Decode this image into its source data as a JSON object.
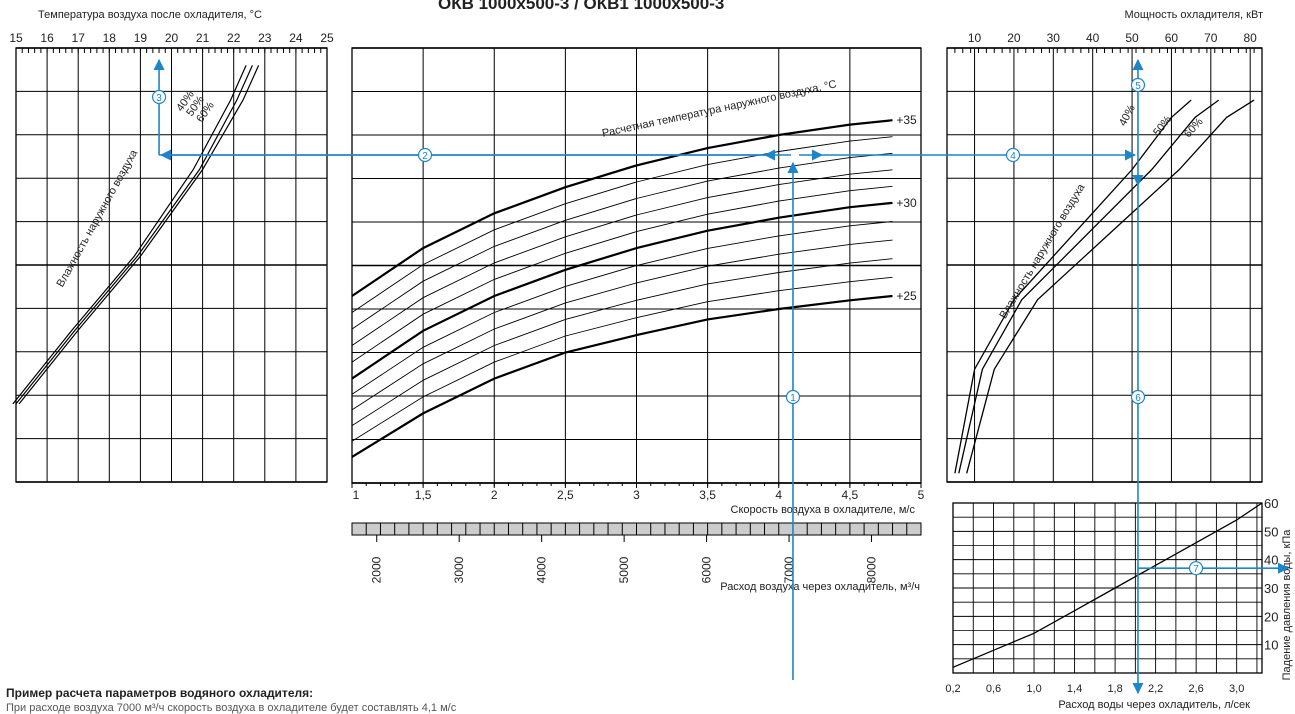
{
  "title": "ОКВ 1000x500-3 / ОКВ1 1000x500-3",
  "example_heading": "Пример расчета параметров водяного охладителя:",
  "example_text": "При расходе воздуха 7000 м³/ч скорость воздуха в охладителе будет составлять 4,1 м/с",
  "colors": {
    "blue": "#1d86c8",
    "grid": "#000000"
  },
  "chart_data": [
    {
      "type": "line",
      "panel": "outlet-temperature",
      "xlabel": "Температура воздуха после охладителя,  °С",
      "x_ticks": [
        "15",
        "16",
        "17",
        "18",
        "19",
        "20",
        "21",
        "22",
        "23",
        "24",
        "25"
      ],
      "xlim": [
        15,
        25
      ],
      "annotations": [
        "40%",
        "50%",
        "60%",
        "Влажность наружного воздуха"
      ],
      "series": [
        {
          "name": "40%",
          "x": [
            15.1,
            17.0,
            19.0,
            21.0,
            22.3,
            22.8
          ],
          "y": [
            0.9,
            1.75,
            2.6,
            3.6,
            4.4,
            4.8
          ]
        },
        {
          "name": "50%",
          "x": [
            15.0,
            16.9,
            18.9,
            20.9,
            22.1,
            22.6
          ],
          "y": [
            0.9,
            1.75,
            2.6,
            3.6,
            4.4,
            4.8
          ]
        },
        {
          "name": "60%",
          "x": [
            14.9,
            16.8,
            18.8,
            20.7,
            21.9,
            22.4
          ],
          "y": [
            0.9,
            1.75,
            2.6,
            3.6,
            4.4,
            4.8
          ]
        }
      ]
    },
    {
      "type": "line",
      "panel": "air-velocity",
      "xlabel": "Скорость воздуха в охладителе,  м/с",
      "x_ticks": [
        "1",
        "1,5",
        "2",
        "2,5",
        "3",
        "3,5",
        "4",
        "4,5",
        "5"
      ],
      "xlim": [
        1,
        5
      ],
      "x2label": "Расход воздуха через охладитель,  м³/ч",
      "x2_ticks": [
        "2000",
        "3000",
        "4000",
        "5000",
        "6000",
        "7000",
        "8000"
      ],
      "x2lim": [
        1700,
        8600
      ],
      "annotations": [
        "Расчетная  температура  наружного  воздуха,  °С"
      ],
      "series": [
        {
          "name": "+35",
          "x": [
            1.0,
            1.5,
            2.0,
            2.5,
            3.0,
            3.5,
            4.0,
            4.5,
            4.8
          ],
          "y": [
            2.15,
            2.7,
            3.1,
            3.4,
            3.65,
            3.85,
            4.0,
            4.12,
            4.17
          ]
        },
        {
          "name": "+30",
          "x": [
            1.0,
            1.5,
            2.0,
            2.5,
            3.0,
            3.5,
            4.0,
            4.5,
            4.8
          ],
          "y": [
            1.2,
            1.75,
            2.15,
            2.45,
            2.7,
            2.9,
            3.05,
            3.17,
            3.22
          ]
        },
        {
          "name": "+25",
          "x": [
            1.0,
            1.5,
            2.0,
            2.5,
            3.0,
            3.5,
            4.0,
            4.5,
            4.8
          ],
          "y": [
            0.3,
            0.8,
            1.2,
            1.5,
            1.7,
            1.88,
            2.0,
            2.1,
            2.15
          ]
        }
      ],
      "curve_labels": [
        "+35",
        "+30",
        "+25"
      ]
    },
    {
      "type": "line",
      "panel": "cooling-power",
      "xlabel": "Мощность охладителя,  кВт",
      "x_ticks": [
        "10",
        "20",
        "30",
        "40",
        "50",
        "60",
        "70",
        "80"
      ],
      "xlim": [
        3,
        83
      ],
      "annotations": [
        "40%",
        "50%",
        "60%",
        "Влажность наружного воздуха"
      ],
      "series": [
        {
          "name": "40%",
          "x": [
            5,
            10,
            20,
            30,
            40,
            50,
            60,
            65
          ],
          "y": [
            0.1,
            1.3,
            2.1,
            2.6,
            3.1,
            3.6,
            4.2,
            4.4
          ]
        },
        {
          "name": "50%",
          "x": [
            6,
            12,
            22,
            33,
            44,
            55,
            66,
            72
          ],
          "y": [
            0.1,
            1.3,
            2.1,
            2.6,
            3.1,
            3.6,
            4.2,
            4.4
          ]
        },
        {
          "name": "60%",
          "x": [
            8,
            15,
            26,
            38,
            50,
            62,
            74,
            81
          ],
          "y": [
            0.1,
            1.3,
            2.1,
            2.6,
            3.1,
            3.6,
            4.2,
            4.4
          ]
        }
      ]
    },
    {
      "type": "line",
      "panel": "pressure-drop",
      "xlabel": "Расход воды через охладитель,  л/сек",
      "x_ticks": [
        "0,2",
        "0,6",
        "1,0",
        "1,4",
        "1,8",
        "2,2",
        "2,6",
        "3,0"
      ],
      "xlim": [
        0.2,
        3.25
      ],
      "ylabel": "Падение давления воды,  кПа",
      "y_ticks": [
        "10",
        "20",
        "30",
        "40",
        "50",
        "60"
      ],
      "ylim": [
        0,
        60
      ],
      "series": [
        {
          "name": "",
          "x": [
            0.2,
            0.6,
            1.0,
            1.4,
            1.8,
            2.2,
            2.6,
            3.0,
            3.25
          ],
          "y": [
            2,
            8,
            14,
            22,
            30,
            38,
            46,
            54,
            60
          ]
        }
      ]
    }
  ],
  "example_path": {
    "markers": [
      "1",
      "2",
      "3",
      "4",
      "5",
      "6",
      "7"
    ],
    "velocity_m_s": 4.1,
    "airflow_m3_h": 7000,
    "outlet_temp_c": 19.6,
    "power_kw": 51.5,
    "water_flow_l_s": 2.05,
    "pressure_drop_kpa": 37
  }
}
